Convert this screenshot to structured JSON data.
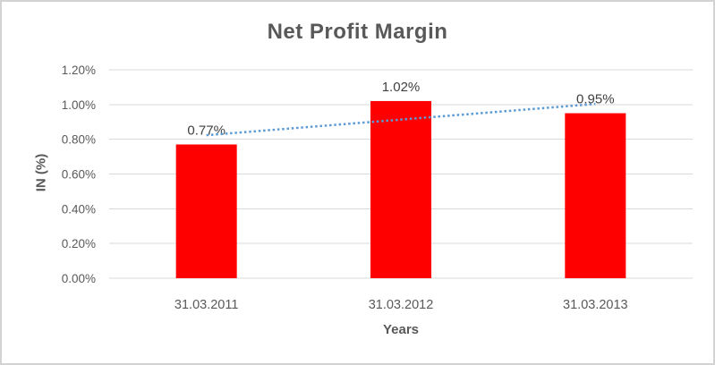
{
  "window": {
    "background": "#ffffff",
    "border_color": "#d3d3d3"
  },
  "chart_data": {
    "type": "bar",
    "title": "Net Profit Margin",
    "xlabel": "Years",
    "ylabel": "IN (%)",
    "categories": [
      "31.03.2011",
      "31.03.2012",
      "31.03.2013"
    ],
    "values": [
      0.77,
      1.02,
      0.95
    ],
    "unit": "%",
    "data_labels": [
      "0.77%",
      "1.02%",
      "0.95%"
    ],
    "y_ticks": [
      "0.00%",
      "0.20%",
      "0.40%",
      "0.60%",
      "0.80%",
      "1.00%",
      "1.20%"
    ],
    "ylim": [
      0,
      1.2
    ],
    "grid": true,
    "legend": "none",
    "bar_color": "#ff0000",
    "trendline": {
      "type": "linear",
      "line_style": "dotted",
      "color": "#5b9bd5"
    },
    "colors": {
      "title_text": "#595959",
      "axis_text": "#595959",
      "data_label_text": "#404040",
      "gridline": "#d9d9d9"
    }
  }
}
